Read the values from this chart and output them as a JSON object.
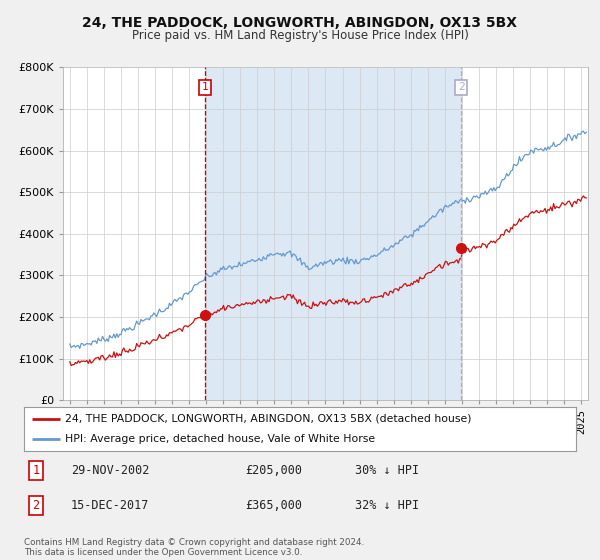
{
  "title": "24, THE PADDOCK, LONGWORTH, ABINGDON, OX13 5BX",
  "subtitle": "Price paid vs. HM Land Registry's House Price Index (HPI)",
  "legend_line1": "24, THE PADDOCK, LONGWORTH, ABINGDON, OX13 5BX (detached house)",
  "legend_line2": "HPI: Average price, detached house, Vale of White Horse",
  "annotation1": {
    "num": "1",
    "date": "29-NOV-2002",
    "price": "£205,000",
    "pct": "30% ↓ HPI"
  },
  "annotation2": {
    "num": "2",
    "date": "15-DEC-2017",
    "price": "£365,000",
    "pct": "32% ↓ HPI"
  },
  "footer": "Contains HM Land Registry data © Crown copyright and database right 2024.\nThis data is licensed under the Open Government Licence v3.0.",
  "hpi_color": "#6699cc",
  "price_color": "#cc1111",
  "vline1_color": "#cc0000",
  "vline2_color": "#aaaacc",
  "shade_color": "#dde8f5",
  "background_color": "#f0f0f0",
  "plot_bg_color": "#ffffff",
  "ylim": [
    0,
    800000
  ],
  "yticks": [
    0,
    100000,
    200000,
    300000,
    400000,
    500000,
    600000,
    700000,
    800000
  ],
  "sale1_x": 2002.92,
  "sale1_y": 205000,
  "sale2_x": 2017.96,
  "sale2_y": 365000,
  "xmin": 1994.6,
  "xmax": 2025.4
}
